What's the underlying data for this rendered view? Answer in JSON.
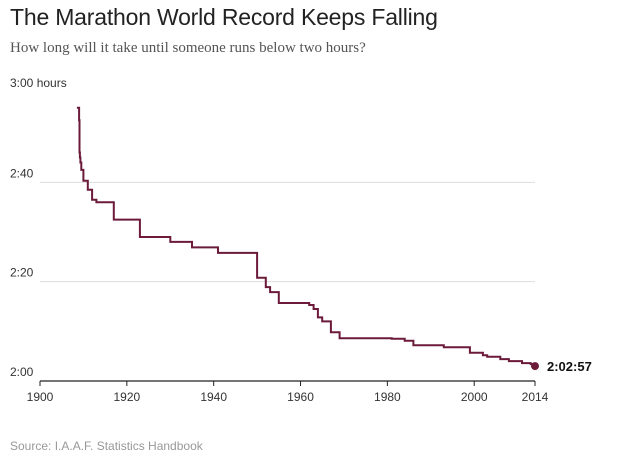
{
  "chart_data": {
    "type": "line",
    "title": "The Marathon World Record Keeps Falling",
    "subtitle": "How long will it take until someone runs below two hours?",
    "source": "Source: I.A.A.F. Statistics Handbook",
    "xlim": [
      1900,
      2014
    ],
    "ylim_minutes": [
      120,
      180
    ],
    "x_ticks": [
      1900,
      1920,
      1940,
      1960,
      1980,
      2000,
      2014
    ],
    "y_ticks": [
      {
        "value": 120,
        "label": "2:00"
      },
      {
        "value": 140,
        "label": "2:20"
      },
      {
        "value": 160,
        "label": "2:40"
      },
      {
        "value": 180,
        "label": "3:00",
        "unit": "hours"
      }
    ],
    "grid": true,
    "line_color": "#6b1a3a",
    "series": [
      {
        "x": [
          1908.5,
          1909.0,
          1909.1,
          1909.2,
          1909.3,
          1909.5,
          1910.0,
          1911.0,
          1912.0,
          1913.0,
          1917.0,
          1923.0,
          1930.0,
          1935.0,
          1941.0,
          1950.0,
          1952.0,
          1953.0,
          1955.0,
          1962.0,
          1963.0,
          1964.0,
          1965.0,
          1967.0,
          1969.0,
          1981.0,
          1984.0,
          1986.0,
          1993.0,
          1999.0,
          2002.0,
          2003.0,
          2006.0,
          2008.0,
          2011.0,
          2013.0,
          2014.0
        ],
        "y_minutes": [
          175.0,
          172.5,
          166.0,
          165.0,
          164.0,
          162.5,
          160.3,
          158.5,
          156.5,
          156.0,
          152.5,
          149.0,
          148.0,
          146.9,
          145.8,
          140.8,
          138.9,
          137.9,
          135.7,
          135.3,
          134.5,
          132.8,
          132.0,
          129.8,
          128.6,
          128.5,
          128.1,
          127.2,
          126.8,
          125.7,
          125.2,
          124.9,
          124.4,
          124.0,
          123.6,
          123.4,
          123.0
        ]
      }
    ],
    "end_label": "2:02:57"
  }
}
